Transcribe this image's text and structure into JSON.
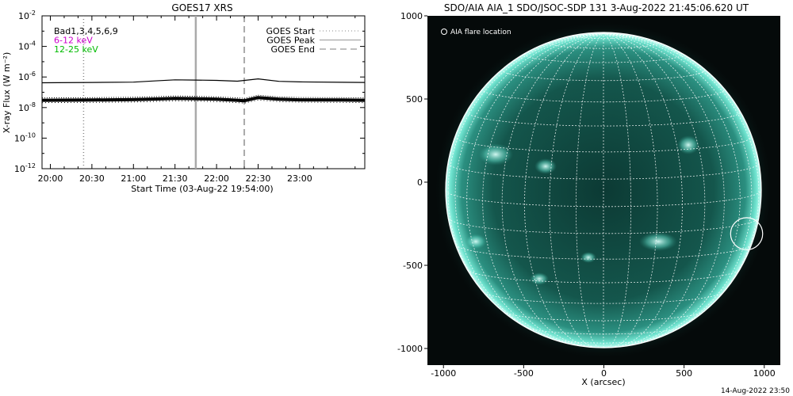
{
  "chart_data": [
    {
      "type": "line",
      "title": "GOES17 XRS",
      "xlabel": "Start Time (03-Aug-22 19:54:00)",
      "ylabel": "X-ray Flux (W m⁻²)",
      "x_ticks": [
        "20:00",
        "20:30",
        "21:00",
        "21:30",
        "22:00",
        "22:30",
        "23:00"
      ],
      "y_ticks": [
        {
          "base": "10",
          "exp": "-2"
        },
        {
          "base": "10",
          "exp": "-4"
        },
        {
          "base": "10",
          "exp": "-6"
        },
        {
          "base": "10",
          "exp": "-8"
        },
        {
          "base": "10",
          "exp": "-10"
        },
        {
          "base": "10",
          "exp": "-12"
        }
      ],
      "xlim": [
        "19:54",
        "23:47"
      ],
      "ylim": [
        1e-12,
        0.01
      ],
      "y_scale": "log",
      "legend_left": [
        "Bad1,3,4,5,6,9",
        "6-12 keV",
        "12-25 keV"
      ],
      "legend_left_colors": [
        "#000000",
        "#cc00cc",
        "#00bb00"
      ],
      "legend_right": [
        "GOES Start",
        "GOES Peak",
        "GOES End"
      ],
      "vlines": [
        {
          "time": "20:24",
          "style": "dotted",
          "color": "#888888"
        },
        {
          "time": "21:45",
          "style": "solid",
          "color": "#aaaaaa"
        },
        {
          "time": "22:20",
          "style": "dashed",
          "color": "#aaaaaa"
        }
      ],
      "series": [
        {
          "x": [
            "19:54",
            "20:30",
            "21:00",
            "21:15",
            "21:30",
            "21:45",
            "22:00",
            "22:15",
            "22:30",
            "22:45",
            "23:00",
            "23:30",
            "23:47"
          ],
          "y": [
            4.2e-07,
            4.4e-07,
            4.6e-07,
            5.5e-07,
            6.5e-07,
            6.3e-07,
            6e-07,
            5.3e-07,
            7.5e-07,
            5.2e-07,
            4.8e-07,
            4.5e-07,
            4.4e-07
          ]
        },
        {
          "x": [
            "19:54",
            "20:30",
            "21:00",
            "21:15",
            "21:30",
            "21:45",
            "22:00",
            "22:15",
            "22:20",
            "22:30",
            "22:45",
            "23:00",
            "23:30",
            "23:47"
          ],
          "y": [
            3e-08,
            3.1e-08,
            3.3e-08,
            3.6e-08,
            4e-08,
            3.8e-08,
            3.5e-08,
            3e-08,
            2.8e-08,
            4.5e-08,
            3.5e-08,
            3.2e-08,
            3.1e-08,
            3e-08
          ]
        }
      ]
    },
    {
      "type": "image",
      "title": "SDO/AIA AIA_1 SDO/JSOC-SDP 131  3-Aug-2022 21:45:06.620 UT",
      "xlabel": "X (arcsec)",
      "x_ticks": [
        "-1000",
        "-500",
        "0",
        "500",
        "1000"
      ],
      "y_ticks": [
        "1000",
        "500",
        "0",
        "-500",
        "-1000"
      ],
      "xlim": [
        -1100,
        1100
      ],
      "ylim": [
        -1100,
        1000
      ],
      "legend": "AIA flare location",
      "flare_location": {
        "x": 890,
        "y": -310,
        "r": 100
      },
      "colors": {
        "disk": "#1a5f55",
        "limb": "#7ff5e0",
        "grid": "#ffffff",
        "background": "#050a0a"
      }
    }
  ],
  "footer": {
    "timestamp": "14-Aug-2022 23:50"
  }
}
